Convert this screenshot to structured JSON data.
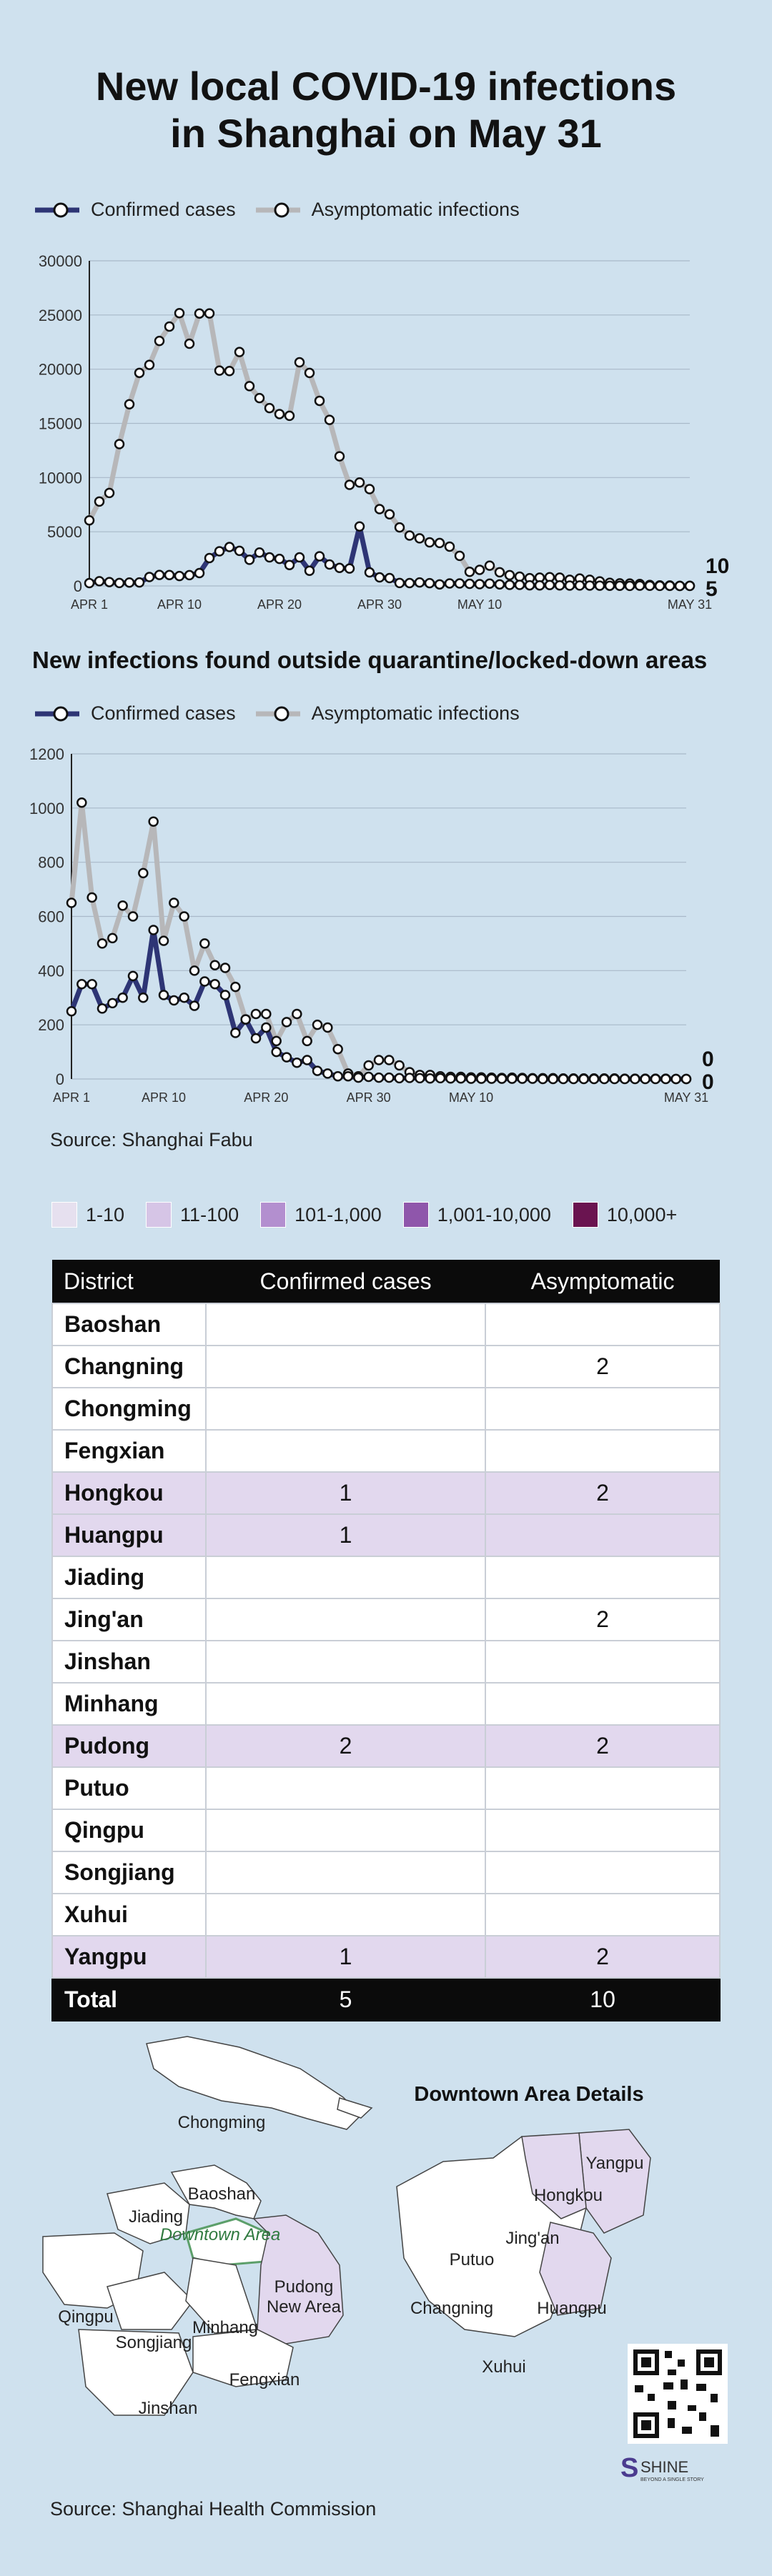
{
  "title_line1": "New local COVID-19 infections",
  "title_line2": "in Shanghai on May 31",
  "legend": {
    "confirmed": "Confirmed cases",
    "asymptomatic": "Asymptomatic infections"
  },
  "colors": {
    "confirmed": "#2e3575",
    "asymptomatic": "#b7b7b9",
    "background": "#cfe1ee"
  },
  "chart_data": [
    {
      "type": "line",
      "title": "",
      "x_tick_labels": [
        "APR 1",
        "APR 10",
        "APR 20",
        "APR 30",
        "MAY 10",
        "MAY 31"
      ],
      "y_tick_labels": [
        "0",
        "5000",
        "10000",
        "15000",
        "20000",
        "25000",
        "30000"
      ],
      "ylim": [
        0,
        30000
      ],
      "x": [
        1,
        2,
        3,
        4,
        5,
        6,
        7,
        8,
        9,
        10,
        11,
        12,
        13,
        14,
        15,
        16,
        17,
        18,
        19,
        20,
        21,
        22,
        23,
        24,
        25,
        26,
        27,
        28,
        29,
        30,
        31,
        32,
        33,
        34,
        35,
        36,
        37,
        38,
        39,
        40,
        41,
        42,
        43,
        44,
        45,
        46,
        47,
        48,
        49,
        50,
        51,
        52,
        53,
        54,
        55,
        56,
        57,
        58,
        59,
        60,
        61
      ],
      "series": [
        {
          "name": "Confirmed cases",
          "color": "#2e3575",
          "values": [
            260,
            438,
            358,
            268,
            311,
            322,
            824,
            1015,
            1006,
            914,
            994,
            1189,
            2573,
            3200,
            3590,
            3238,
            2417,
            3084,
            2634,
            2494,
            1931,
            2634,
            1401,
            2736,
            1980,
            1661,
            1606,
            5487,
            1249,
            788,
            727,
            274,
            260,
            322,
            253,
            144,
            234,
            227,
            194,
            166,
            215,
            144,
            97,
            96,
            61,
            49,
            80,
            49,
            31,
            44,
            34,
            24,
            20,
            15,
            7,
            23,
            17,
            5,
            12,
            4,
            5
          ],
          "end_label": "5"
        },
        {
          "name": "Asymptomatic infections",
          "color": "#b7b7b9",
          "values": [
            6051,
            7788,
            8581,
            13086,
            16766,
            19660,
            20398,
            22609,
            23937,
            25173,
            22348,
            25141,
            25146,
            19872,
            19831,
            21582,
            18437,
            17332,
            16407,
            15861,
            15698,
            20634,
            19657,
            17081,
            15319,
            11956,
            9330,
            9545,
            8932,
            7084,
            6606,
            5395,
            4651,
            4390,
            4024,
            3961,
            3625,
            2780,
            1305,
            1487,
            1869,
            1259,
            1000,
            858,
            719,
            770,
            811,
            767,
            572,
            681,
            570,
            422,
            290,
            243,
            219,
            178,
            93,
            52,
            42,
            5,
            10
          ],
          "end_label": "10"
        }
      ]
    },
    {
      "type": "line",
      "title": "New infections found outside quarantine/locked-down areas",
      "x_tick_labels": [
        "APR 1",
        "APR 10",
        "APR 20",
        "APR 30",
        "MAY 10",
        "MAY 31"
      ],
      "y_tick_labels": [
        "0",
        "200",
        "400",
        "600",
        "800",
        "1000",
        "1200"
      ],
      "ylim": [
        0,
        1200
      ],
      "x": [
        1,
        2,
        3,
        4,
        5,
        6,
        7,
        8,
        9,
        10,
        11,
        12,
        13,
        14,
        15,
        16,
        17,
        18,
        19,
        20,
        21,
        22,
        23,
        24,
        25,
        26,
        27,
        28,
        29,
        30,
        31,
        32,
        33,
        34,
        35,
        36,
        37,
        38,
        39,
        40,
        41,
        42,
        43,
        44,
        45,
        46,
        47,
        48,
        49,
        50,
        51,
        52,
        53,
        54,
        55,
        56,
        57,
        58,
        59,
        60,
        61
      ],
      "series": [
        {
          "name": "Confirmed cases",
          "color": "#2e3575",
          "values": [
            250,
            350,
            350,
            260,
            280,
            300,
            380,
            300,
            550,
            310,
            290,
            300,
            270,
            360,
            350,
            310,
            170,
            220,
            150,
            190,
            100,
            80,
            60,
            70,
            30,
            20,
            10,
            10,
            5,
            8,
            5,
            5,
            3,
            4,
            3,
            2,
            3,
            2,
            2,
            1,
            1,
            1,
            1,
            1,
            1,
            1,
            0,
            0,
            0,
            0,
            0,
            0,
            0,
            0,
            0,
            0,
            0,
            0,
            0,
            0,
            0
          ],
          "end_label": "0"
        },
        {
          "name": "Asymptomatic infections",
          "color": "#b7b7b9",
          "values": [
            650,
            1020,
            670,
            500,
            520,
            640,
            600,
            760,
            950,
            510,
            650,
            600,
            400,
            500,
            420,
            410,
            340,
            220,
            240,
            240,
            140,
            210,
            240,
            140,
            200,
            190,
            110,
            20,
            10,
            50,
            70,
            70,
            50,
            25,
            15,
            15,
            10,
            8,
            8,
            6,
            6,
            5,
            4,
            5,
            4,
            3,
            3,
            3,
            2,
            2,
            2,
            2,
            2,
            2,
            1,
            1,
            1,
            1,
            1,
            0,
            0
          ],
          "end_label": "0"
        }
      ]
    }
  ],
  "source1": "Source: Shanghai Fabu",
  "color_legend": [
    {
      "label": "1-10",
      "color": "#e6e0ef"
    },
    {
      "label": "11-100",
      "color": "#d6c5e6"
    },
    {
      "label": "101-1,000",
      "color": "#b38fcf"
    },
    {
      "label": "1,001-10,000",
      "color": "#8f56ab"
    },
    {
      "label": "10,000+",
      "color": "#6a1450"
    }
  ],
  "table": {
    "headers": [
      "District",
      "Confirmed cases",
      "Asymptomatic"
    ],
    "rows": [
      {
        "district": "Baoshan",
        "confirmed": "",
        "asymptomatic": "",
        "highlight": false
      },
      {
        "district": "Changning",
        "confirmed": "",
        "asymptomatic": "2",
        "highlight": false
      },
      {
        "district": "Chongming",
        "confirmed": "",
        "asymptomatic": "",
        "highlight": false
      },
      {
        "district": "Fengxian",
        "confirmed": "",
        "asymptomatic": "",
        "highlight": false
      },
      {
        "district": "Hongkou",
        "confirmed": "1",
        "asymptomatic": "2",
        "highlight": true
      },
      {
        "district": "Huangpu",
        "confirmed": "1",
        "asymptomatic": "",
        "highlight": true
      },
      {
        "district": "Jiading",
        "confirmed": "",
        "asymptomatic": "",
        "highlight": false
      },
      {
        "district": "Jing'an",
        "confirmed": "",
        "asymptomatic": "2",
        "highlight": false
      },
      {
        "district": "Jinshan",
        "confirmed": "",
        "asymptomatic": "",
        "highlight": false
      },
      {
        "district": "Minhang",
        "confirmed": "",
        "asymptomatic": "",
        "highlight": false
      },
      {
        "district": "Pudong",
        "confirmed": "2",
        "asymptomatic": "2",
        "highlight": true
      },
      {
        "district": "Putuo",
        "confirmed": "",
        "asymptomatic": "",
        "highlight": false
      },
      {
        "district": "Qingpu",
        "confirmed": "",
        "asymptomatic": "",
        "highlight": false
      },
      {
        "district": "Songjiang",
        "confirmed": "",
        "asymptomatic": "",
        "highlight": false
      },
      {
        "district": "Xuhui",
        "confirmed": "",
        "asymptomatic": "",
        "highlight": false
      },
      {
        "district": "Yangpu",
        "confirmed": "1",
        "asymptomatic": "2",
        "highlight": true
      }
    ],
    "total": {
      "label": "Total",
      "confirmed": "5",
      "asymptomatic": "10"
    }
  },
  "map": {
    "downtown_title": "Downtown Area Details",
    "main_labels": [
      "Chongming",
      "Baoshan",
      "Jiading",
      "Downtown Area",
      "Pudong",
      "New Area",
      "Qingpu",
      "Songjiang",
      "Minhang",
      "Fengxian",
      "Jinshan"
    ],
    "downtown_labels": [
      "Yangpu",
      "Hongkou",
      "Jing'an",
      "Putuo",
      "Changning",
      "Huangpu",
      "Xuhui"
    ]
  },
  "logo_text": "SHINE",
  "logo_tagline": "BEYOND A SINGLE STORY",
  "source2": "Source: Shanghai Health Commission"
}
